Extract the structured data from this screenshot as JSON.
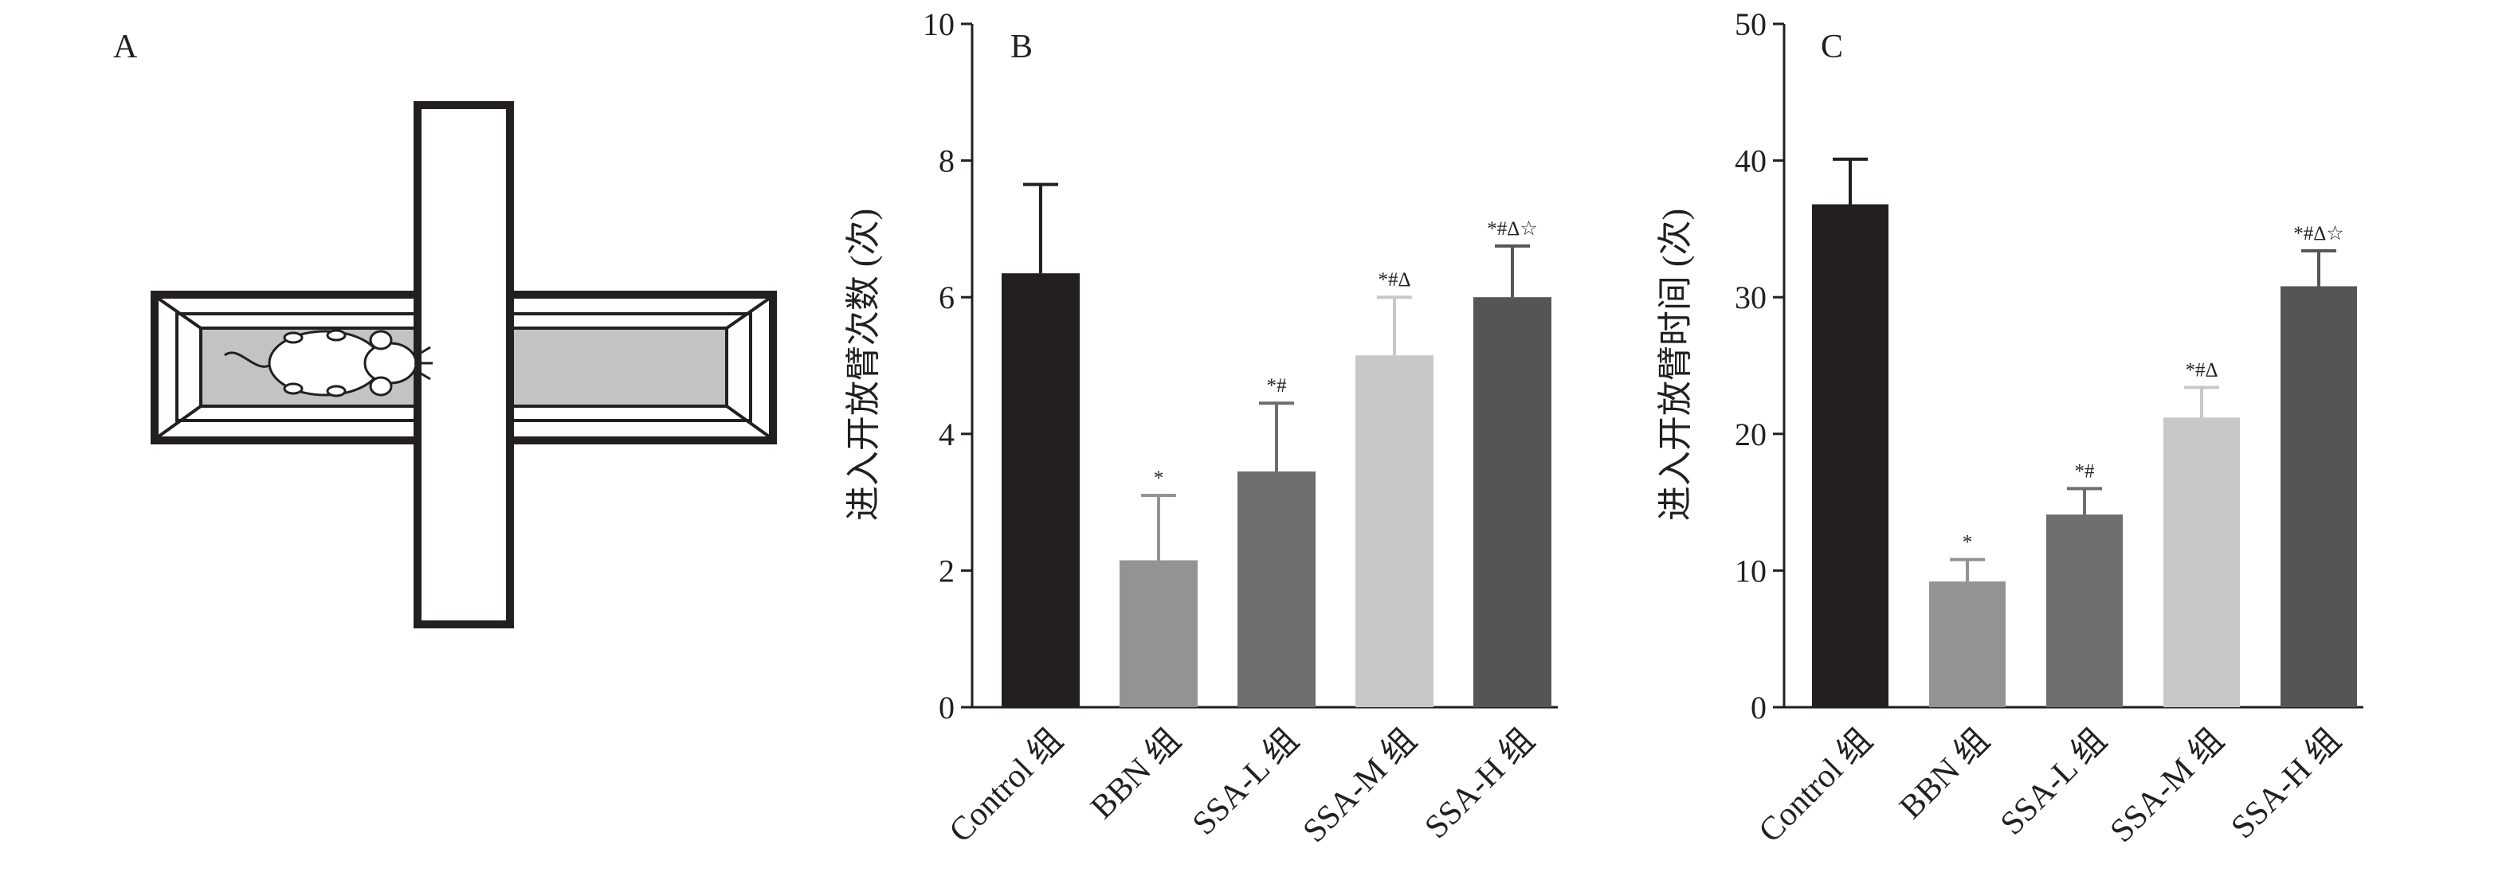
{
  "panels": {
    "A": {
      "label": "A"
    },
    "B": {
      "label": "B"
    },
    "C": {
      "label": "C"
    }
  },
  "colors": {
    "Control组": "#231f20",
    "BBN组": "#939393",
    "SSA-L组": "#6e6e6e",
    "SSA-M组": "#c8c8c8",
    "SSA-H组": "#555555",
    "maze_outline": "#231f20",
    "maze_fill": "#c3c3c3"
  },
  "icons": {
    "maze": "elevated-plus-maze-diagram",
    "mouse": "mouse-icon"
  },
  "chart_data": [
    {
      "panel": "B",
      "type": "bar",
      "title": "",
      "xlabel": "",
      "ylabel": "进入开放臂次数 (次)",
      "ylim": [
        0,
        10
      ],
      "yticks": [
        0,
        2,
        4,
        6,
        8,
        10
      ],
      "grid": false,
      "categories": [
        "Control 组",
        "BBN 组",
        "SSA-L 组",
        "SSA-M 组",
        "SSA-H 组"
      ],
      "values": [
        6.35,
        2.15,
        3.45,
        5.15,
        6.0
      ],
      "errors": [
        1.3,
        0.95,
        1.0,
        0.85,
        0.75
      ],
      "annotations": [
        "",
        "*",
        "*#",
        "*#Δ",
        "*#Δ☆"
      ]
    },
    {
      "panel": "C",
      "type": "bar",
      "title": "",
      "xlabel": "",
      "ylabel": "进入开放臂时间 (次)",
      "ylim": [
        0,
        50
      ],
      "yticks": [
        0,
        10,
        20,
        30,
        40,
        50
      ],
      "grid": false,
      "categories": [
        "Control 组",
        "BBN 组",
        "SSA-L 组",
        "SSA-M 组",
        "SSA-H 组"
      ],
      "values": [
        36.8,
        9.2,
        14.1,
        21.2,
        30.8
      ],
      "errors": [
        3.3,
        1.6,
        1.9,
        2.2,
        2.6
      ],
      "annotations": [
        "",
        "*",
        "*#",
        "*#Δ",
        "*#Δ☆"
      ]
    }
  ]
}
